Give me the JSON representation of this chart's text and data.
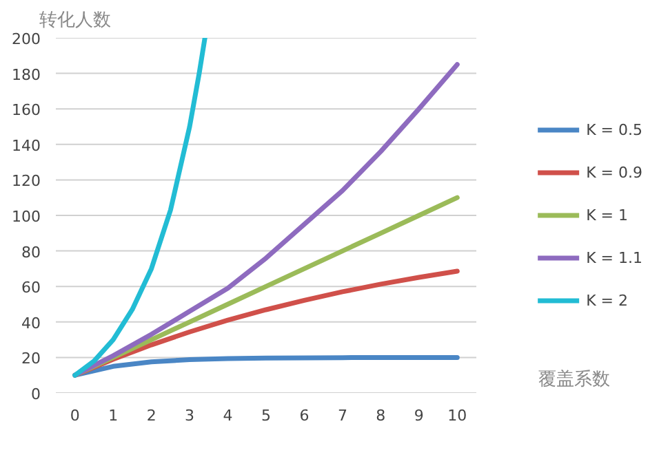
{
  "chart_data": {
    "type": "line",
    "ylabel": "转化人数",
    "xlabel": "覆盖系数",
    "xlim": [
      -0.5,
      10.5
    ],
    "xticks": [
      0,
      1,
      2,
      3,
      4,
      5,
      6,
      7,
      8,
      9,
      10
    ],
    "ylim": [
      0,
      200
    ],
    "yticks": [
      0,
      20,
      40,
      60,
      80,
      100,
      120,
      140,
      160,
      180,
      200
    ],
    "grid": "y",
    "legend": "right",
    "marker": "none",
    "line_style": "solid",
    "series": [
      {
        "name": "K = 0.5",
        "color": "#4a86c5",
        "x": [
          0,
          1,
          2,
          3,
          4,
          5,
          6,
          7,
          8,
          9,
          10
        ],
        "values": [
          10,
          15,
          17.5,
          18.8,
          19.4,
          19.7,
          19.8,
          19.9,
          20,
          20,
          20
        ]
      },
      {
        "name": "K = 0.9",
        "color": "#d0504a",
        "x": [
          0,
          1,
          2,
          3,
          4,
          5,
          6,
          7,
          8,
          9,
          10
        ],
        "values": [
          10,
          19,
          27.1,
          34.4,
          41,
          46.9,
          52.2,
          57,
          61.3,
          65.1,
          68.6
        ]
      },
      {
        "name": "K = 1",
        "color": "#9bbb59",
        "x": [
          0,
          1,
          2,
          3,
          4,
          5,
          6,
          7,
          8,
          9,
          10
        ],
        "values": [
          10,
          20,
          30,
          40,
          50,
          60,
          70,
          80,
          90,
          100,
          110
        ]
      },
      {
        "name": "K = 1.1",
        "color": "#8e6bbf",
        "x": [
          0,
          1,
          2,
          3,
          4,
          5,
          6,
          7,
          8,
          9,
          10
        ],
        "values": [
          10,
          21,
          33,
          46,
          59,
          76,
          95,
          114,
          136,
          160,
          185
        ]
      },
      {
        "name": "K = 2",
        "color": "#22bcd4",
        "x": [
          0,
          0.5,
          1,
          1.5,
          2,
          2.5,
          3,
          3.25,
          3.4
        ],
        "values": [
          10,
          18,
          30,
          47,
          70,
          103,
          150,
          180,
          200
        ]
      }
    ]
  }
}
